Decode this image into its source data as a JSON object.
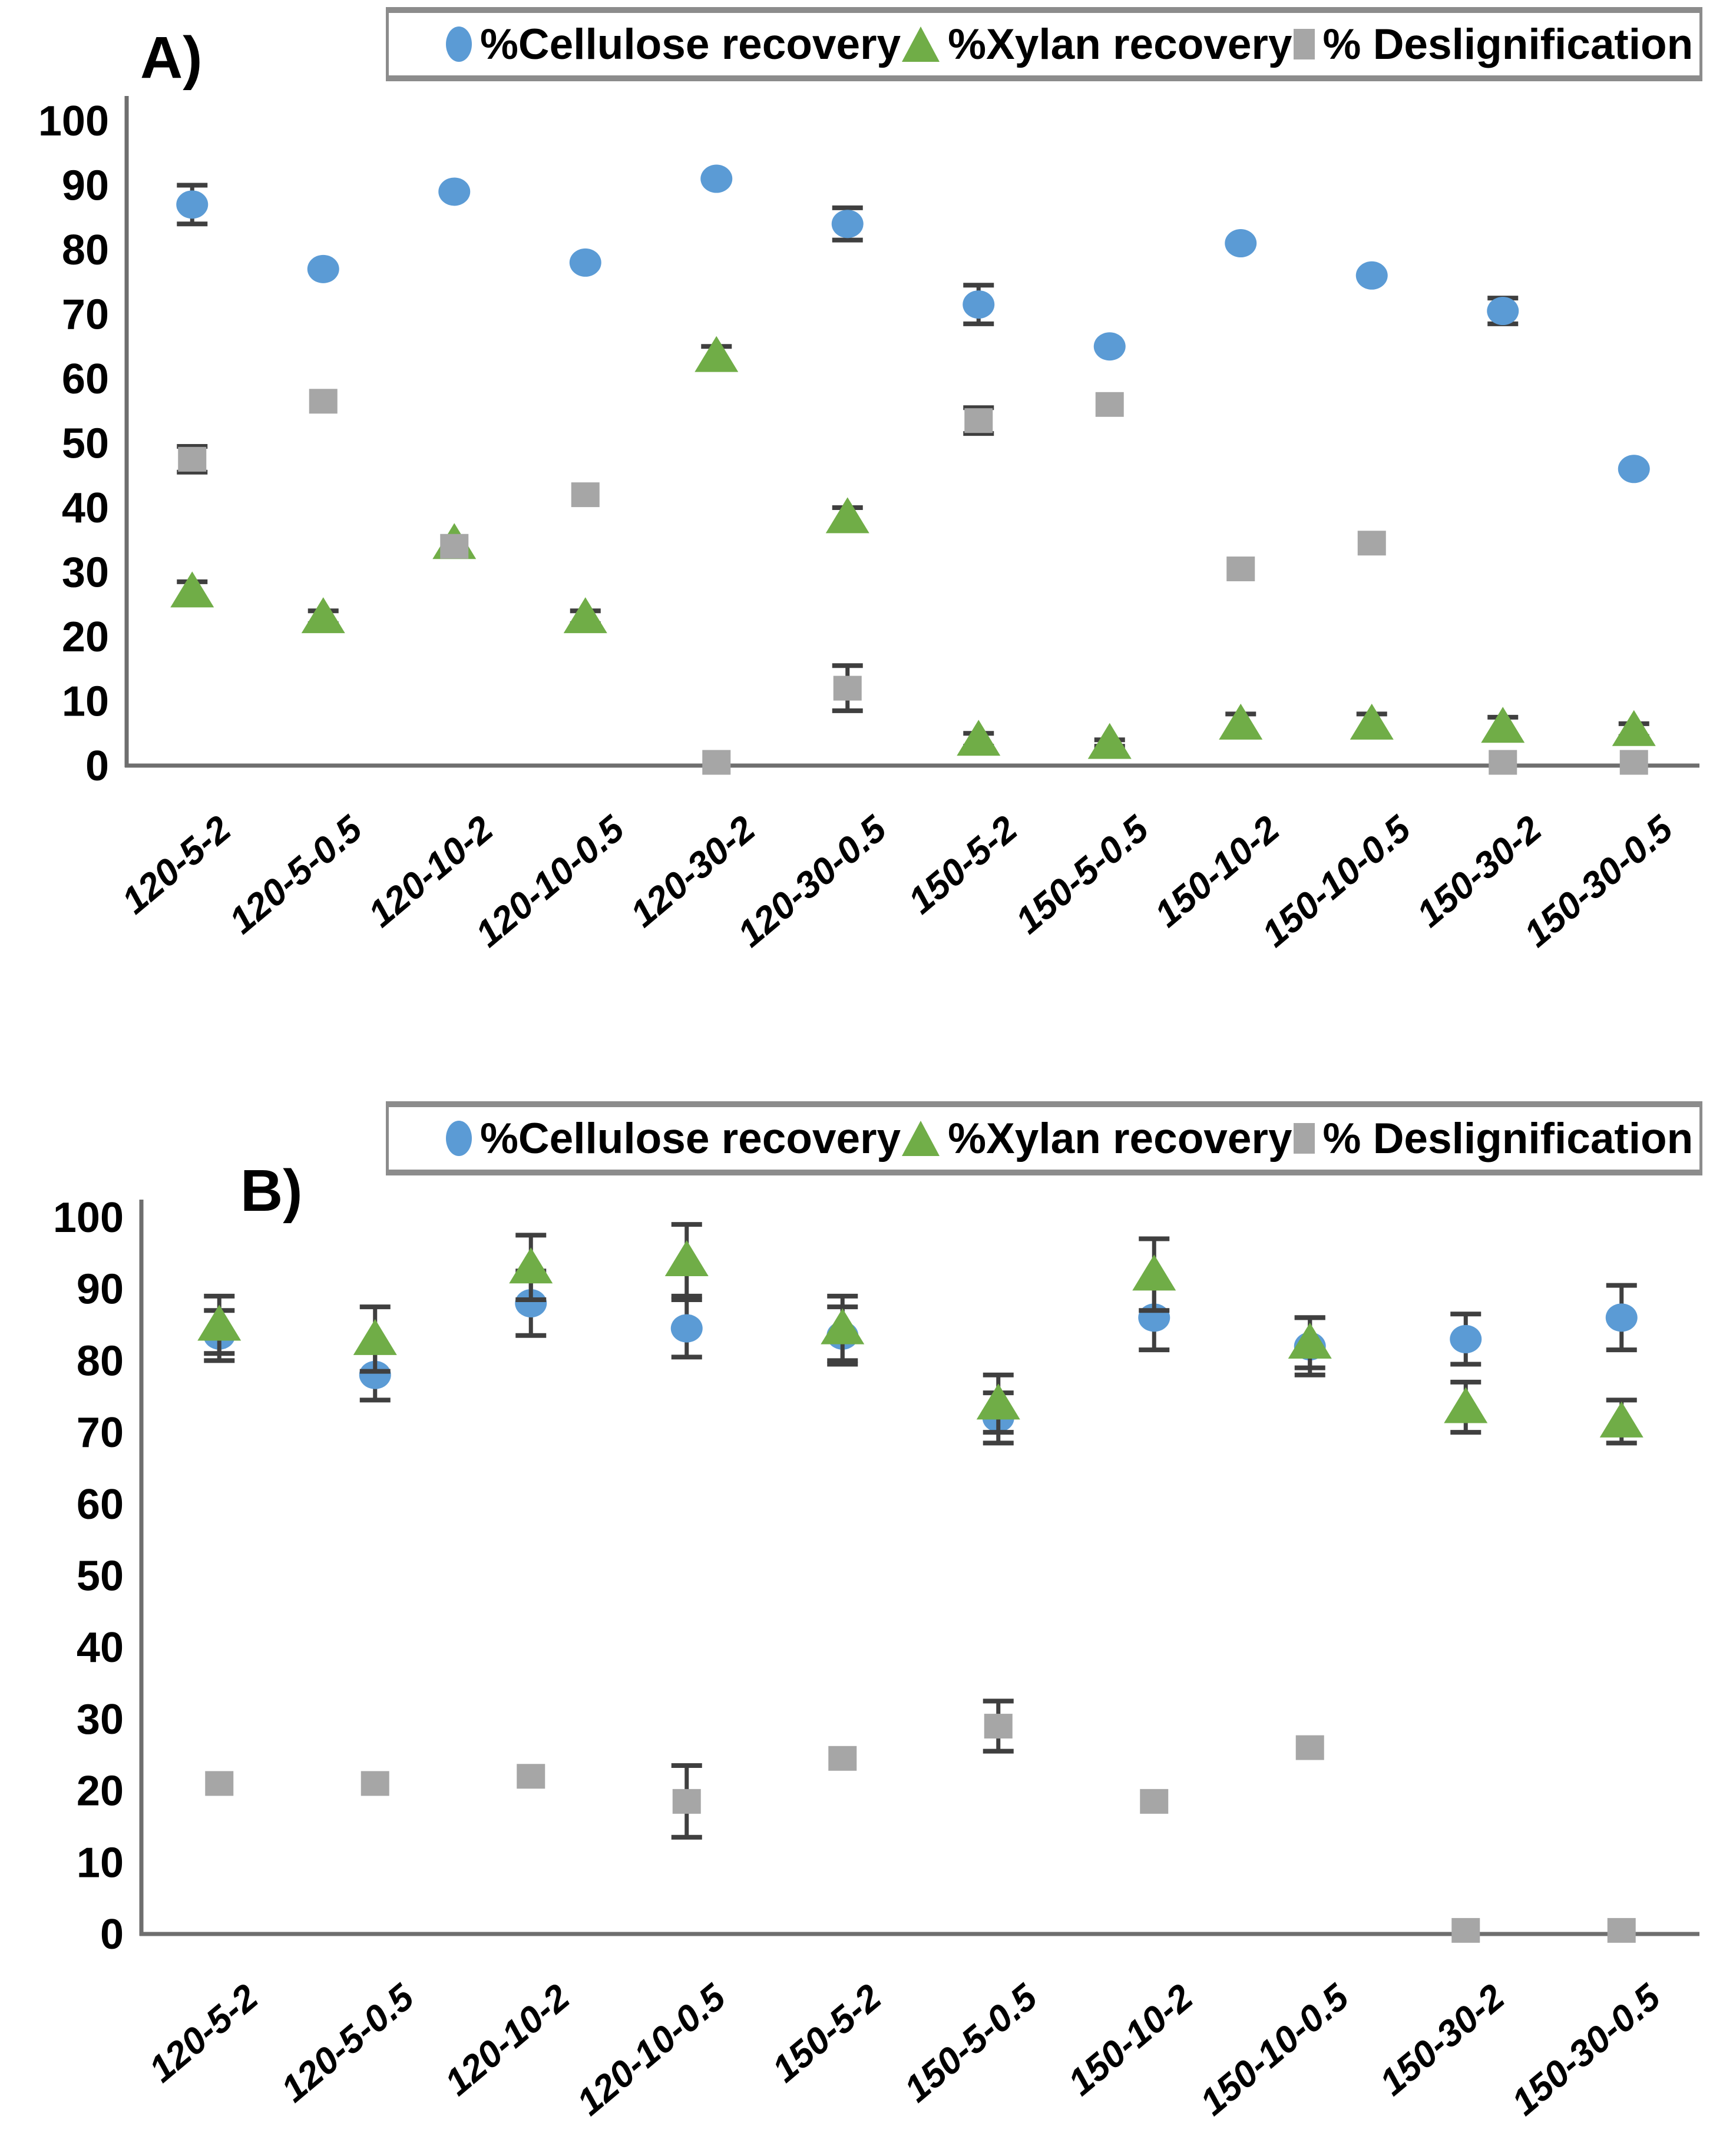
{
  "figure": {
    "panels": [
      {
        "label": "A)"
      },
      {
        "label": "B)"
      }
    ]
  },
  "style": {
    "cellulose_color": "#5B9BD5",
    "xylan_color": "#70AD47",
    "delignification_color": "#A6A6A6",
    "error_bar_color": "#3F3F3F",
    "axis_color": "#6E6E6E",
    "legend_border_color": "#8C8C8C",
    "text_color": "#000000"
  },
  "chart_data": [
    {
      "panel_label": "A)",
      "type": "scatter",
      "title": "",
      "xlabel": "",
      "ylabel": "",
      "ylim": [
        0,
        100
      ],
      "ytick_step": 10,
      "ytick_labels": [
        "0",
        "10",
        "20",
        "30",
        "40",
        "50",
        "60",
        "70",
        "80",
        "90",
        "100"
      ],
      "grid": false,
      "legend_position": "top",
      "categories": [
        "120-5-2",
        "120-5-0.5",
        "120-10-2",
        "120-10-0.5",
        "120-30-2",
        "120-30-0.5",
        "150-5-2",
        "150-5-0.5",
        "150-10-2",
        "150-10-0.5",
        "150-30-2",
        "150-30-0.5"
      ],
      "series": [
        {
          "name": "%Cellulose recovery",
          "marker": "circle",
          "color": "#5B9BD5",
          "values": [
            87,
            77,
            89,
            78,
            91,
            84,
            71.5,
            65,
            81,
            76,
            70.5,
            46
          ],
          "errors": [
            3,
            0,
            0,
            0,
            0,
            2.5,
            3,
            0,
            0,
            0,
            2,
            0
          ]
        },
        {
          "name": "%Xylan recovery",
          "marker": "triangle",
          "color": "#70AD47",
          "values": [
            27,
            23,
            34.5,
            23,
            63.5,
            38.5,
            4,
            3.5,
            6.5,
            6.5,
            6,
            5.5
          ],
          "errors": [
            1.5,
            1,
            0,
            1,
            1.5,
            1.5,
            1,
            0.5,
            1.5,
            1.5,
            1.5,
            1
          ]
        },
        {
          "name": "% Deslignification",
          "marker": "square",
          "color": "#A6A6A6",
          "values": [
            47.5,
            56.5,
            34,
            42,
            0.5,
            12,
            53.5,
            56,
            30.5,
            34.5,
            0.5,
            0.5
          ],
          "errors": [
            2,
            0,
            0,
            0,
            0,
            3.5,
            2,
            0,
            0,
            0,
            0,
            0
          ]
        }
      ]
    },
    {
      "panel_label": "B)",
      "type": "scatter",
      "title": "",
      "xlabel": "",
      "ylabel": "",
      "ylim": [
        0,
        100
      ],
      "ytick_step": 10,
      "ytick_labels": [
        "0",
        "10",
        "20",
        "30",
        "40",
        "50",
        "60",
        "70",
        "80",
        "90",
        "100"
      ],
      "grid": false,
      "legend_position": "top",
      "categories": [
        "120-5-2",
        "120-5-0.5",
        "120-10-2",
        "120-10-0.5",
        "150-5-2",
        "150-5-0.5",
        "150-10-2",
        "150-10-0.5",
        "150-30-2",
        "150-30-0.5"
      ],
      "series": [
        {
          "name": "%Cellulose recovery",
          "marker": "circle",
          "color": "#5B9BD5",
          "values": [
            83.5,
            78,
            88,
            84.5,
            83.5,
            72,
            86,
            82,
            83,
            86
          ],
          "errors": [
            3.5,
            3.5,
            4.5,
            4,
            4,
            3.5,
            4.5,
            4,
            3.5,
            4.5
          ]
        },
        {
          "name": "%Xylan recovery",
          "marker": "triangle",
          "color": "#70AD47",
          "values": [
            85,
            83,
            93,
            94,
            84.5,
            74,
            92,
            82.5,
            73.5,
            71.5
          ],
          "errors": [
            4,
            4.5,
            4.5,
            5,
            4.5,
            4,
            5,
            3.5,
            3.5,
            3
          ]
        },
        {
          "name": "% Deslignification",
          "marker": "square",
          "color": "#A6A6A6",
          "values": [
            21,
            21,
            22,
            18.5,
            24.5,
            29,
            18.5,
            26,
            0.5,
            0.5
          ],
          "errors": [
            0,
            0,
            0,
            5,
            0,
            3.5,
            0,
            0,
            0,
            0
          ]
        }
      ]
    }
  ]
}
